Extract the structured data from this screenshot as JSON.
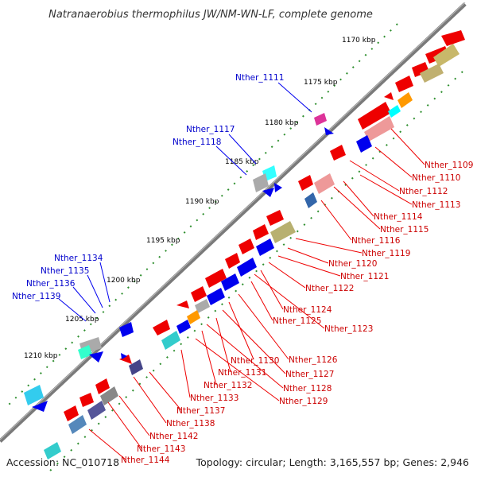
{
  "title": "Natranaerobius thermophilus JW/NM-WN-LF, complete genome",
  "footer": {
    "accession": "Accession: NC_010718",
    "topology": "Topology: circular; Length: 3,165,557 bp; Genes: 2,946"
  },
  "colors": {
    "backbone": "#777777",
    "forward": "#ee0000",
    "reverse": "#0000ee",
    "label_red": "#cc0000",
    "label_blue": "#0000cc",
    "tick": "#339933"
  },
  "scale_labels": [
    "1170 kbp",
    "1175 kbp",
    "1180 kbp",
    "1185 kbp",
    "1190 kbp",
    "1195 kbp",
    "1200 kbp",
    "1205 kbp",
    "1210 kbp"
  ],
  "right_labels": [
    "Nther_1109",
    "Nther_1110",
    "Nther_1112",
    "Nther_1113",
    "Nther_1114",
    "Nther_1115",
    "Nther_1116",
    "Nther_1119",
    "Nther_1120",
    "Nther_1121",
    "Nther_1122",
    "Nther_1124",
    "Nther_1125",
    "Nther_1123",
    "Nther_1126",
    "Nther_1130",
    "Nther_1127",
    "Nther_1131",
    "Nther_1128",
    "Nther_1132",
    "Nther_1129",
    "Nther_1133",
    "Nther_1137",
    "Nther_1138",
    "Nther_1142",
    "Nther_1143",
    "Nther_1144"
  ],
  "left_labels": [
    "Nther_1111",
    "Nther_1117",
    "Nther_1118",
    "Nther_1134",
    "Nther_1135",
    "Nther_1136",
    "Nther_1139"
  ]
}
